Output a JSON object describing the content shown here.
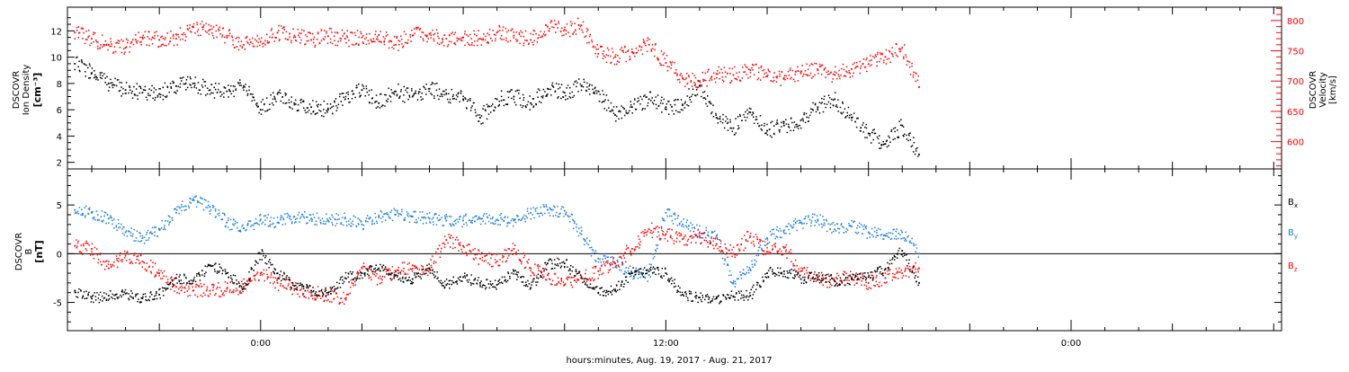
{
  "chart_data": [
    {
      "type": "scatter",
      "panel": "top",
      "xlabel": "hours:minutes, Aug. 19, 2017 - Aug. 21, 2017",
      "x_ticks": [
        "0:00",
        "12:00",
        "0:00"
      ],
      "ylabel_left": [
        "DSCOVR",
        "Ion Density",
        "[cm⁻³]"
      ],
      "ylabel_right": [
        "DSCOVR",
        "Velocity",
        "[km/s]"
      ],
      "y_left": {
        "ticks": [
          2,
          4,
          6,
          8,
          10,
          12
        ],
        "range": [
          1.5,
          13.8
        ]
      },
      "y_right": {
        "ticks": [
          600,
          650,
          700,
          750,
          800
        ],
        "range": [
          555,
          822
        ]
      },
      "series": [
        {
          "axis": "left",
          "color": "#000000",
          "x": [
            -5.5,
            -5,
            -4.5,
            -4,
            -3.5,
            -3,
            -2.5,
            -2,
            -1.5,
            -1,
            -0.5,
            0,
            0.5,
            1,
            1.5,
            2,
            2.5,
            3,
            3.5,
            4,
            4.5,
            5,
            5.5,
            6,
            6.5,
            7,
            7.5,
            8,
            8.5,
            9,
            9.5,
            10,
            10.5,
            11,
            11.5,
            12,
            12.5,
            13,
            13.5,
            14,
            14.5,
            15,
            15.5,
            16,
            16.5,
            17,
            17.5,
            18,
            18.5,
            19,
            19.5
          ],
          "y": [
            9.5,
            8.8,
            8,
            7.5,
            7.3,
            7.2,
            7.8,
            8,
            7.5,
            7.4,
            7.8,
            6,
            7.2,
            6.5,
            6.2,
            6,
            6.8,
            7.5,
            6.5,
            7.4,
            7,
            7.6,
            7.2,
            6.8,
            5.4,
            6.8,
            7,
            6.5,
            7.6,
            7.3,
            7.8,
            7.4,
            5.6,
            6.2,
            6.8,
            6.2,
            6.4,
            7.8,
            5.4,
            4.6,
            5.8,
            4.4,
            4.8,
            5.2,
            6.2,
            6.8,
            5.4,
            4.2,
            3.4,
            4.8,
            2.6
          ]
        },
        {
          "axis": "right",
          "color": "#ff0000",
          "x": [
            -5.5,
            -5,
            -4.5,
            -4,
            -3.5,
            -3,
            -2.5,
            -2,
            -1.5,
            -1,
            -0.5,
            0,
            0.5,
            1,
            1.5,
            2,
            2.5,
            3,
            3.5,
            4,
            4.5,
            5,
            5.5,
            6,
            6.5,
            7,
            7.5,
            8,
            8.5,
            9,
            9.5,
            10,
            10.5,
            11,
            11.5,
            12,
            12.5,
            13,
            13.5,
            14,
            14.5,
            15,
            15.5,
            16,
            16.5,
            17,
            17.5,
            18,
            18.5,
            19,
            19.5
          ],
          "y": [
            780,
            770,
            760,
            755,
            772,
            768,
            770,
            790,
            785,
            775,
            760,
            765,
            780,
            775,
            768,
            774,
            770,
            772,
            776,
            760,
            775,
            778,
            770,
            772,
            770,
            780,
            775,
            768,
            790,
            785,
            792,
            745,
            740,
            748,
            760,
            730,
            705,
            700,
            712,
            710,
            718,
            708,
            705,
            715,
            718,
            710,
            720,
            728,
            740,
            755,
            690
          ]
        }
      ]
    },
    {
      "type": "scatter",
      "panel": "bottom",
      "xlabel": "hours:minutes, Aug. 19, 2017 - Aug. 21, 2017",
      "x_ticks": [
        "0:00",
        "12:00",
        "0:00"
      ],
      "ylabel_left": [
        "DSCOVR",
        "B",
        "[nT]"
      ],
      "y_left": {
        "ticks": [
          -5,
          0,
          5
        ],
        "range": [
          -7.9,
          8.7
        ]
      },
      "zero_line": true,
      "legend": {
        "placement": "right",
        "entries": [
          {
            "label": "B",
            "subscript": "x",
            "color": "#000000"
          },
          {
            "label": "B",
            "subscript": "y",
            "color": "#1e7fd8"
          },
          {
            "label": "B",
            "subscript": "z",
            "color": "#ff0000"
          }
        ]
      },
      "series": [
        {
          "name": "Bx",
          "color": "#000000",
          "x": [
            -5.5,
            -5,
            -4.5,
            -4,
            -3.5,
            -3,
            -2.5,
            -2,
            -1.5,
            -1,
            -0.5,
            0,
            0.5,
            1,
            1.5,
            2,
            2.5,
            3,
            3.5,
            4,
            4.5,
            5,
            5.5,
            6,
            6.5,
            7,
            7.5,
            8,
            8.5,
            9,
            9.5,
            10,
            10.5,
            11,
            11.5,
            12,
            12.5,
            13,
            13.5,
            14,
            14.5,
            15,
            15.5,
            16,
            16.5,
            17,
            17.5,
            18,
            18.5,
            19,
            19.5
          ],
          "y": [
            -3.8,
            -4.6,
            -4.3,
            -4.1,
            -4.6,
            -4.2,
            -2.5,
            -2.8,
            -1.2,
            -2,
            -3.6,
            0,
            -2,
            -3.3,
            -3.8,
            -4,
            -2.5,
            -2,
            -1.5,
            -2.2,
            -2.6,
            -1.5,
            -3.2,
            -2.4,
            -3,
            -3.2,
            -1.8,
            -3.5,
            -1,
            -1,
            -2.5,
            -4,
            -3.8,
            -2,
            -1.8,
            -2,
            -4.2,
            -4.5,
            -4.6,
            -4.4,
            -4.3,
            -2,
            -1.8,
            -2.6,
            -2.4,
            -2.8,
            -2.6,
            -2.4,
            -1.6,
            0.3,
            -3
          ]
        },
        {
          "name": "By",
          "color": "#1e7fd8",
          "x": [
            -5.5,
            -5,
            -4.5,
            -4,
            -3.5,
            -3,
            -2.5,
            -2,
            -1.5,
            -1,
            -0.5,
            0,
            0.5,
            1,
            1.5,
            2,
            2.5,
            3,
            3.5,
            4,
            4.5,
            5,
            5.5,
            6,
            6.5,
            7,
            7.5,
            8,
            8.5,
            9,
            9.5,
            10,
            10.5,
            11,
            11.5,
            12,
            12.5,
            13,
            13.5,
            14,
            14.5,
            15,
            15.5,
            16,
            16.5,
            17,
            17.5,
            18,
            18.5,
            19,
            19.5
          ],
          "y": [
            4.5,
            4.2,
            3.6,
            2.2,
            1.6,
            2.5,
            4.2,
            5.6,
            4.8,
            3.2,
            2.6,
            3.5,
            3.2,
            3.8,
            3.6,
            3.4,
            3.6,
            3,
            3.8,
            4,
            3.8,
            3.6,
            3.4,
            3.4,
            3.6,
            3.5,
            3.4,
            4.2,
            4.5,
            4.4,
            2,
            -0.5,
            -1,
            -2,
            -2.2,
            4.2,
            3,
            2.2,
            1.8,
            -3,
            -1.6,
            1.6,
            2.4,
            3.2,
            3.5,
            2.5,
            2.8,
            2.2,
            1.9,
            2.2,
            0
          ]
        },
        {
          "name": "Bz",
          "color": "#ff0000",
          "x": [
            -5.5,
            -5,
            -4.5,
            -4,
            -3.5,
            -3,
            -2.5,
            -2,
            -1.5,
            -1,
            -0.5,
            0,
            0.5,
            1,
            1.5,
            2,
            2.5,
            3,
            3.5,
            4,
            4.5,
            5,
            5.5,
            6,
            6.5,
            7,
            7.5,
            8,
            8.5,
            9,
            9.5,
            10,
            10.5,
            11,
            11.5,
            12,
            12.5,
            13,
            13.5,
            14,
            14.5,
            15,
            15.5,
            16,
            16.5,
            17,
            17.5,
            18,
            18.5,
            19,
            19.5
          ],
          "y": [
            0.8,
            0.5,
            -1.5,
            -0.2,
            -0.8,
            -2,
            -3.4,
            -3.8,
            -3.8,
            -3.6,
            -3.4,
            -2,
            -3,
            -3.6,
            -4,
            -4.2,
            -4.6,
            -1.5,
            -2.5,
            -1.8,
            -1.2,
            -1.6,
            1.4,
            0.8,
            -0.5,
            -0.8,
            0.5,
            -1.5,
            -2.2,
            -3.2,
            -2.5,
            -1.8,
            -1,
            0.5,
            2.5,
            2,
            1.5,
            1.8,
            1,
            0,
            1.8,
            0.2,
            0.6,
            -1.8,
            -2.6,
            -2.8,
            -2.4,
            -3,
            -2.5,
            -2,
            -1.5
          ]
        }
      ]
    }
  ]
}
